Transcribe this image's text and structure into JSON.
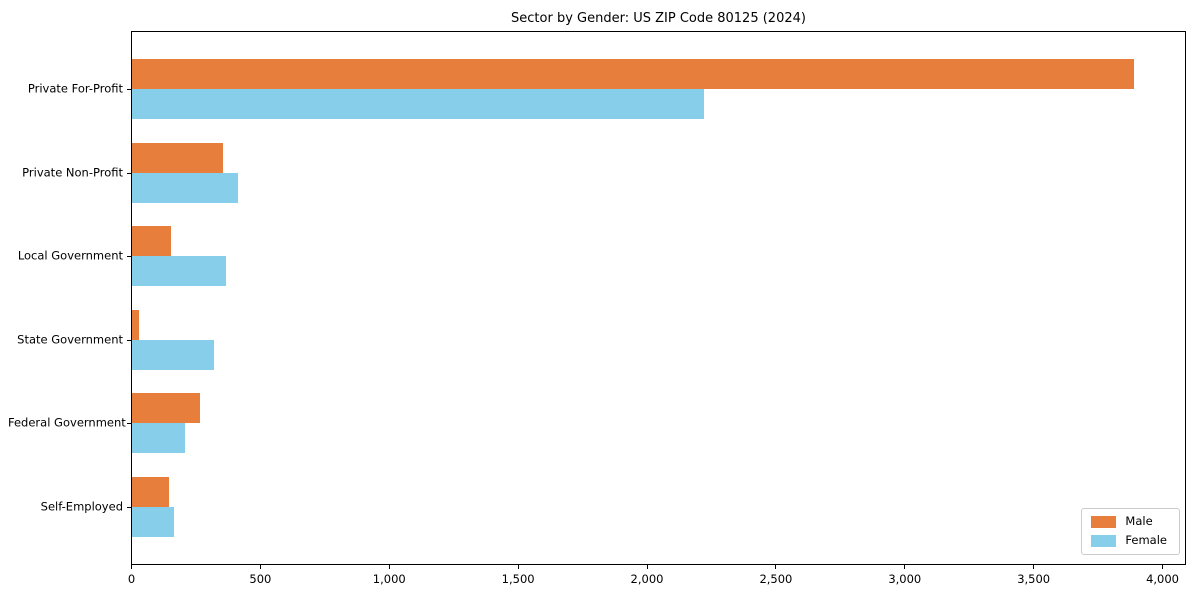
{
  "chart_data": {
    "type": "bar",
    "orientation": "horizontal",
    "title": "Sector by Gender: US ZIP Code 80125 (2024)",
    "categories": [
      "Private For-Profit",
      "Private Non-Profit",
      "Local Government",
      "State Government",
      "Federal Government",
      "Self-Employed"
    ],
    "series": [
      {
        "name": "Male",
        "color": "#e87e3c",
        "values": [
          3890,
          355,
          150,
          27,
          265,
          145
        ]
      },
      {
        "name": "Female",
        "color": "#87ceeb",
        "values": [
          2220,
          410,
          365,
          320,
          205,
          165
        ]
      }
    ],
    "xlabel": "",
    "ylabel": "",
    "xlim": [
      0,
      4089
    ],
    "xticks": [
      0,
      500,
      1000,
      1500,
      2000,
      2500,
      3000,
      3500,
      4000
    ],
    "xtick_labels": [
      "0",
      "500",
      "1,000",
      "1,500",
      "2,000",
      "2,500",
      "3,000",
      "3,500",
      "4,000"
    ],
    "grid": false,
    "legend_position": "lower right",
    "legend_items": [
      {
        "label": "Male",
        "color": "#e87e3c"
      },
      {
        "label": "Female",
        "color": "#87ceeb"
      }
    ]
  }
}
